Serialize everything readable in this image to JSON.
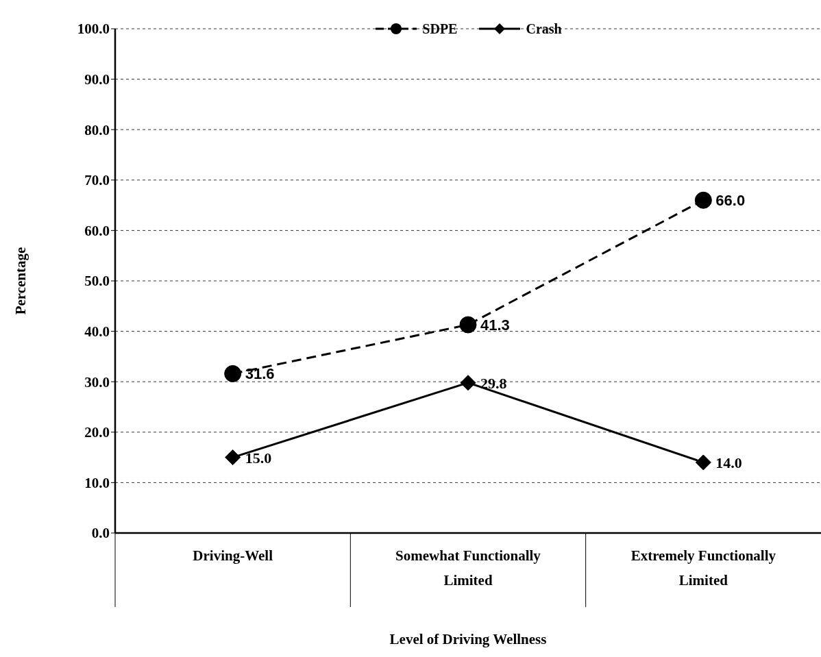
{
  "chart_data": {
    "type": "line",
    "xlabel": "Level of Driving Wellness",
    "ylabel": "Percentage",
    "categories": [
      "Driving-Well",
      "Somewhat Functionally Limited",
      "Extremely Functionally Limited"
    ],
    "series": [
      {
        "name": "SDPE",
        "color": "#000000",
        "values": [
          31.6,
          41.3,
          66.0
        ],
        "value_labels": [
          "31.6",
          "41.3",
          "66.0"
        ],
        "marker": "circle",
        "line_style": "dashed"
      },
      {
        "name": "Crash",
        "color": "#000000",
        "values": [
          15.0,
          29.8,
          14.0
        ],
        "value_labels": [
          "15.0",
          "29.8",
          "14.0"
        ],
        "marker": "diamond",
        "line_style": "solid"
      }
    ],
    "ylim": [
      0,
      100
    ],
    "yticks": [
      {
        "value": 0,
        "label": "0.0"
      },
      {
        "value": 10,
        "label": "10.0"
      },
      {
        "value": 20,
        "label": "20.0"
      },
      {
        "value": 30,
        "label": "30.0"
      },
      {
        "value": 40,
        "label": "40.0"
      },
      {
        "value": 50,
        "label": "50.0"
      },
      {
        "value": 60,
        "label": "60.0"
      },
      {
        "value": 70,
        "label": "70.0"
      },
      {
        "value": 80,
        "label": "80.0"
      },
      {
        "value": 90,
        "label": "90.0"
      },
      {
        "value": 100,
        "label": "100.0"
      }
    ],
    "grid": "y",
    "legend": "top"
  }
}
